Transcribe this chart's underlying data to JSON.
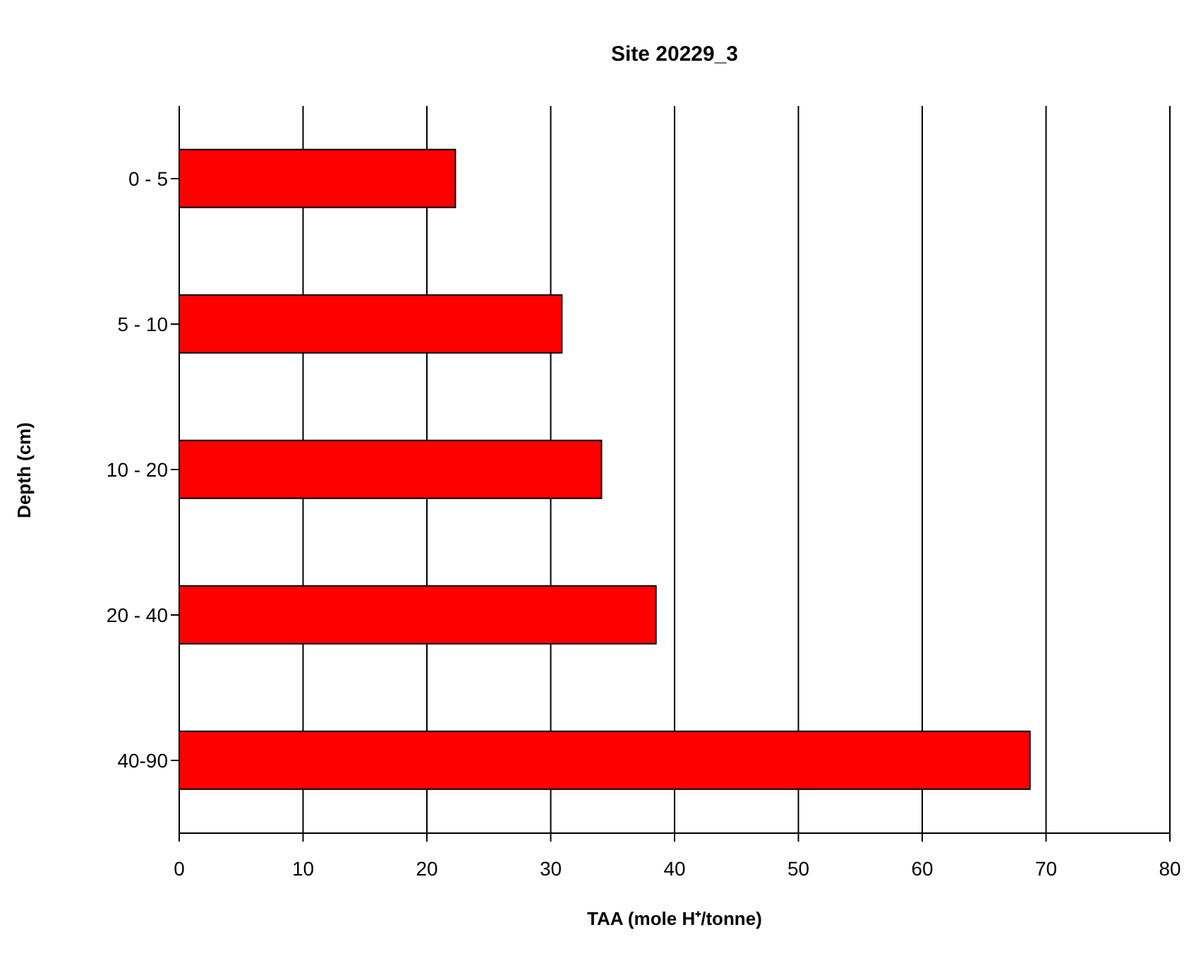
{
  "chart_data": {
    "type": "bar",
    "orientation": "horizontal",
    "title": "Site 20229_3",
    "xlabel": "TAA (mole H⁺/tonne)",
    "ylabel": "Depth (cm)",
    "categories": [
      "0 - 5",
      "5 - 10",
      "10 - 20",
      "20 - 40",
      "40-90"
    ],
    "values": [
      22.3,
      30.9,
      34.1,
      38.5,
      68.7
    ],
    "color": "#ff0000",
    "xlim": [
      0,
      80
    ],
    "xticks": [
      0,
      10,
      20,
      30,
      40,
      50,
      60,
      70,
      80
    ],
    "grid": "x"
  }
}
